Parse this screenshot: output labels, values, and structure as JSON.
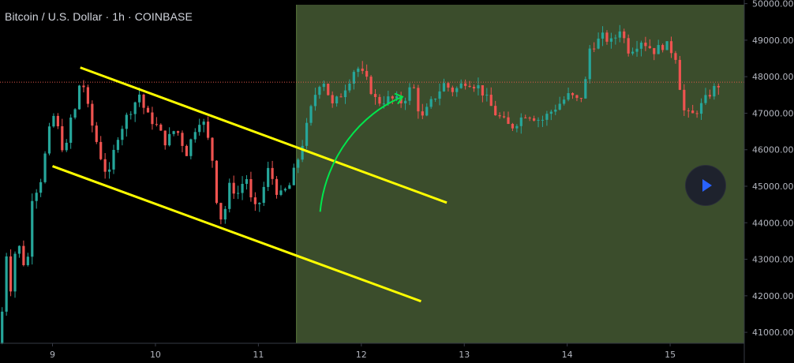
{
  "header": {
    "title": "Bitcoin / U.S. Dollar · 1h · COINBASE"
  },
  "controls": {
    "play_icon": "play-icon"
  },
  "colors": {
    "background": "#000000",
    "highlight_zone": "#3b4d2c",
    "up_candle": "#26a69a",
    "down_candle": "#ef5350",
    "channel": "#ffff00",
    "arrow": "#00e64d",
    "axis_text": "#b2b5be",
    "price_line": "#e0584a"
  },
  "chart_data": {
    "type": "candlestick",
    "title": "Bitcoin / U.S. Dollar · 1h · COINBASE",
    "x_ticks": [
      "9",
      "10",
      "11",
      "12",
      "13",
      "14",
      "15"
    ],
    "y_ticks": [
      "41000.00",
      "42000.00",
      "43000.00",
      "44000.00",
      "45000.00",
      "46000.00",
      "47000.00",
      "48000.00",
      "49000.00",
      "50000.00"
    ],
    "ylim": [
      40700,
      50100
    ],
    "xlim": [
      8.49,
      15.72
    ],
    "current_price": 47850,
    "highlight_zone_x": [
      11.37,
      15.72
    ],
    "channel": {
      "upper": [
        [
          9.27,
          48250
        ],
        [
          12.83,
          44550
        ]
      ],
      "lower": [
        [
          9.0,
          45550
        ],
        [
          12.58,
          41850
        ]
      ]
    },
    "arrow_path": [
      [
        11.6,
        44300
      ],
      [
        11.65,
        45800
      ],
      [
        12.0,
        47000
      ],
      [
        12.4,
        47450
      ]
    ],
    "price_path": [
      [
        8.49,
        40700
      ],
      [
        8.55,
        43200
      ],
      [
        8.6,
        42100
      ],
      [
        8.65,
        43600
      ],
      [
        8.7,
        43100
      ],
      [
        8.75,
        42600
      ],
      [
        8.8,
        44700
      ],
      [
        8.88,
        45100
      ],
      [
        9.0,
        47000
      ],
      [
        9.05,
        46600
      ],
      [
        9.12,
        45800
      ],
      [
        9.18,
        46900
      ],
      [
        9.25,
        47200
      ],
      [
        9.27,
        48250
      ],
      [
        9.33,
        47300
      ],
      [
        9.4,
        46500
      ],
      [
        9.5,
        45500
      ],
      [
        9.55,
        45300
      ],
      [
        9.62,
        46300
      ],
      [
        9.72,
        46900
      ],
      [
        9.8,
        47300
      ],
      [
        9.85,
        47550
      ],
      [
        9.9,
        47000
      ],
      [
        10.0,
        46700
      ],
      [
        10.1,
        46200
      ],
      [
        10.2,
        46600
      ],
      [
        10.3,
        45900
      ],
      [
        10.4,
        46700
      ],
      [
        10.45,
        46900
      ],
      [
        10.5,
        46400
      ],
      [
        10.55,
        45800
      ],
      [
        10.6,
        44500
      ],
      [
        10.65,
        44000
      ],
      [
        10.72,
        45000
      ],
      [
        10.8,
        44800
      ],
      [
        10.88,
        45300
      ],
      [
        10.95,
        44300
      ],
      [
        11.02,
        44600
      ],
      [
        11.1,
        45500
      ],
      [
        11.2,
        44700
      ],
      [
        11.3,
        45000
      ],
      [
        11.38,
        45700
      ],
      [
        11.45,
        46400
      ],
      [
        11.5,
        47000
      ],
      [
        11.56,
        47600
      ],
      [
        11.62,
        48000
      ],
      [
        11.72,
        47200
      ],
      [
        11.8,
        47500
      ],
      [
        11.88,
        47900
      ],
      [
        11.95,
        48300
      ],
      [
        12.05,
        47900
      ],
      [
        12.15,
        47300
      ],
      [
        12.28,
        47400
      ],
      [
        12.4,
        47300
      ],
      [
        12.5,
        47800
      ],
      [
        12.58,
        46800
      ],
      [
        12.68,
        47300
      ],
      [
        12.8,
        47800
      ],
      [
        12.9,
        47600
      ],
      [
        13.02,
        47900
      ],
      [
        13.15,
        47700
      ],
      [
        13.3,
        47000
      ],
      [
        13.45,
        46600
      ],
      [
        13.6,
        47000
      ],
      [
        13.75,
        46800
      ],
      [
        13.9,
        47200
      ],
      [
        14.02,
        47500
      ],
      [
        14.12,
        47300
      ],
      [
        14.2,
        48100
      ],
      [
        14.22,
        48800
      ],
      [
        14.35,
        49100
      ],
      [
        14.45,
        48900
      ],
      [
        14.5,
        49400
      ],
      [
        14.6,
        48700
      ],
      [
        14.72,
        49000
      ],
      [
        14.85,
        48700
      ],
      [
        14.95,
        48900
      ],
      [
        15.05,
        48600
      ],
      [
        15.08,
        48100
      ],
      [
        15.12,
        47100
      ],
      [
        15.2,
        46900
      ],
      [
        15.3,
        47200
      ],
      [
        15.4,
        47600
      ],
      [
        15.5,
        47850
      ]
    ]
  }
}
